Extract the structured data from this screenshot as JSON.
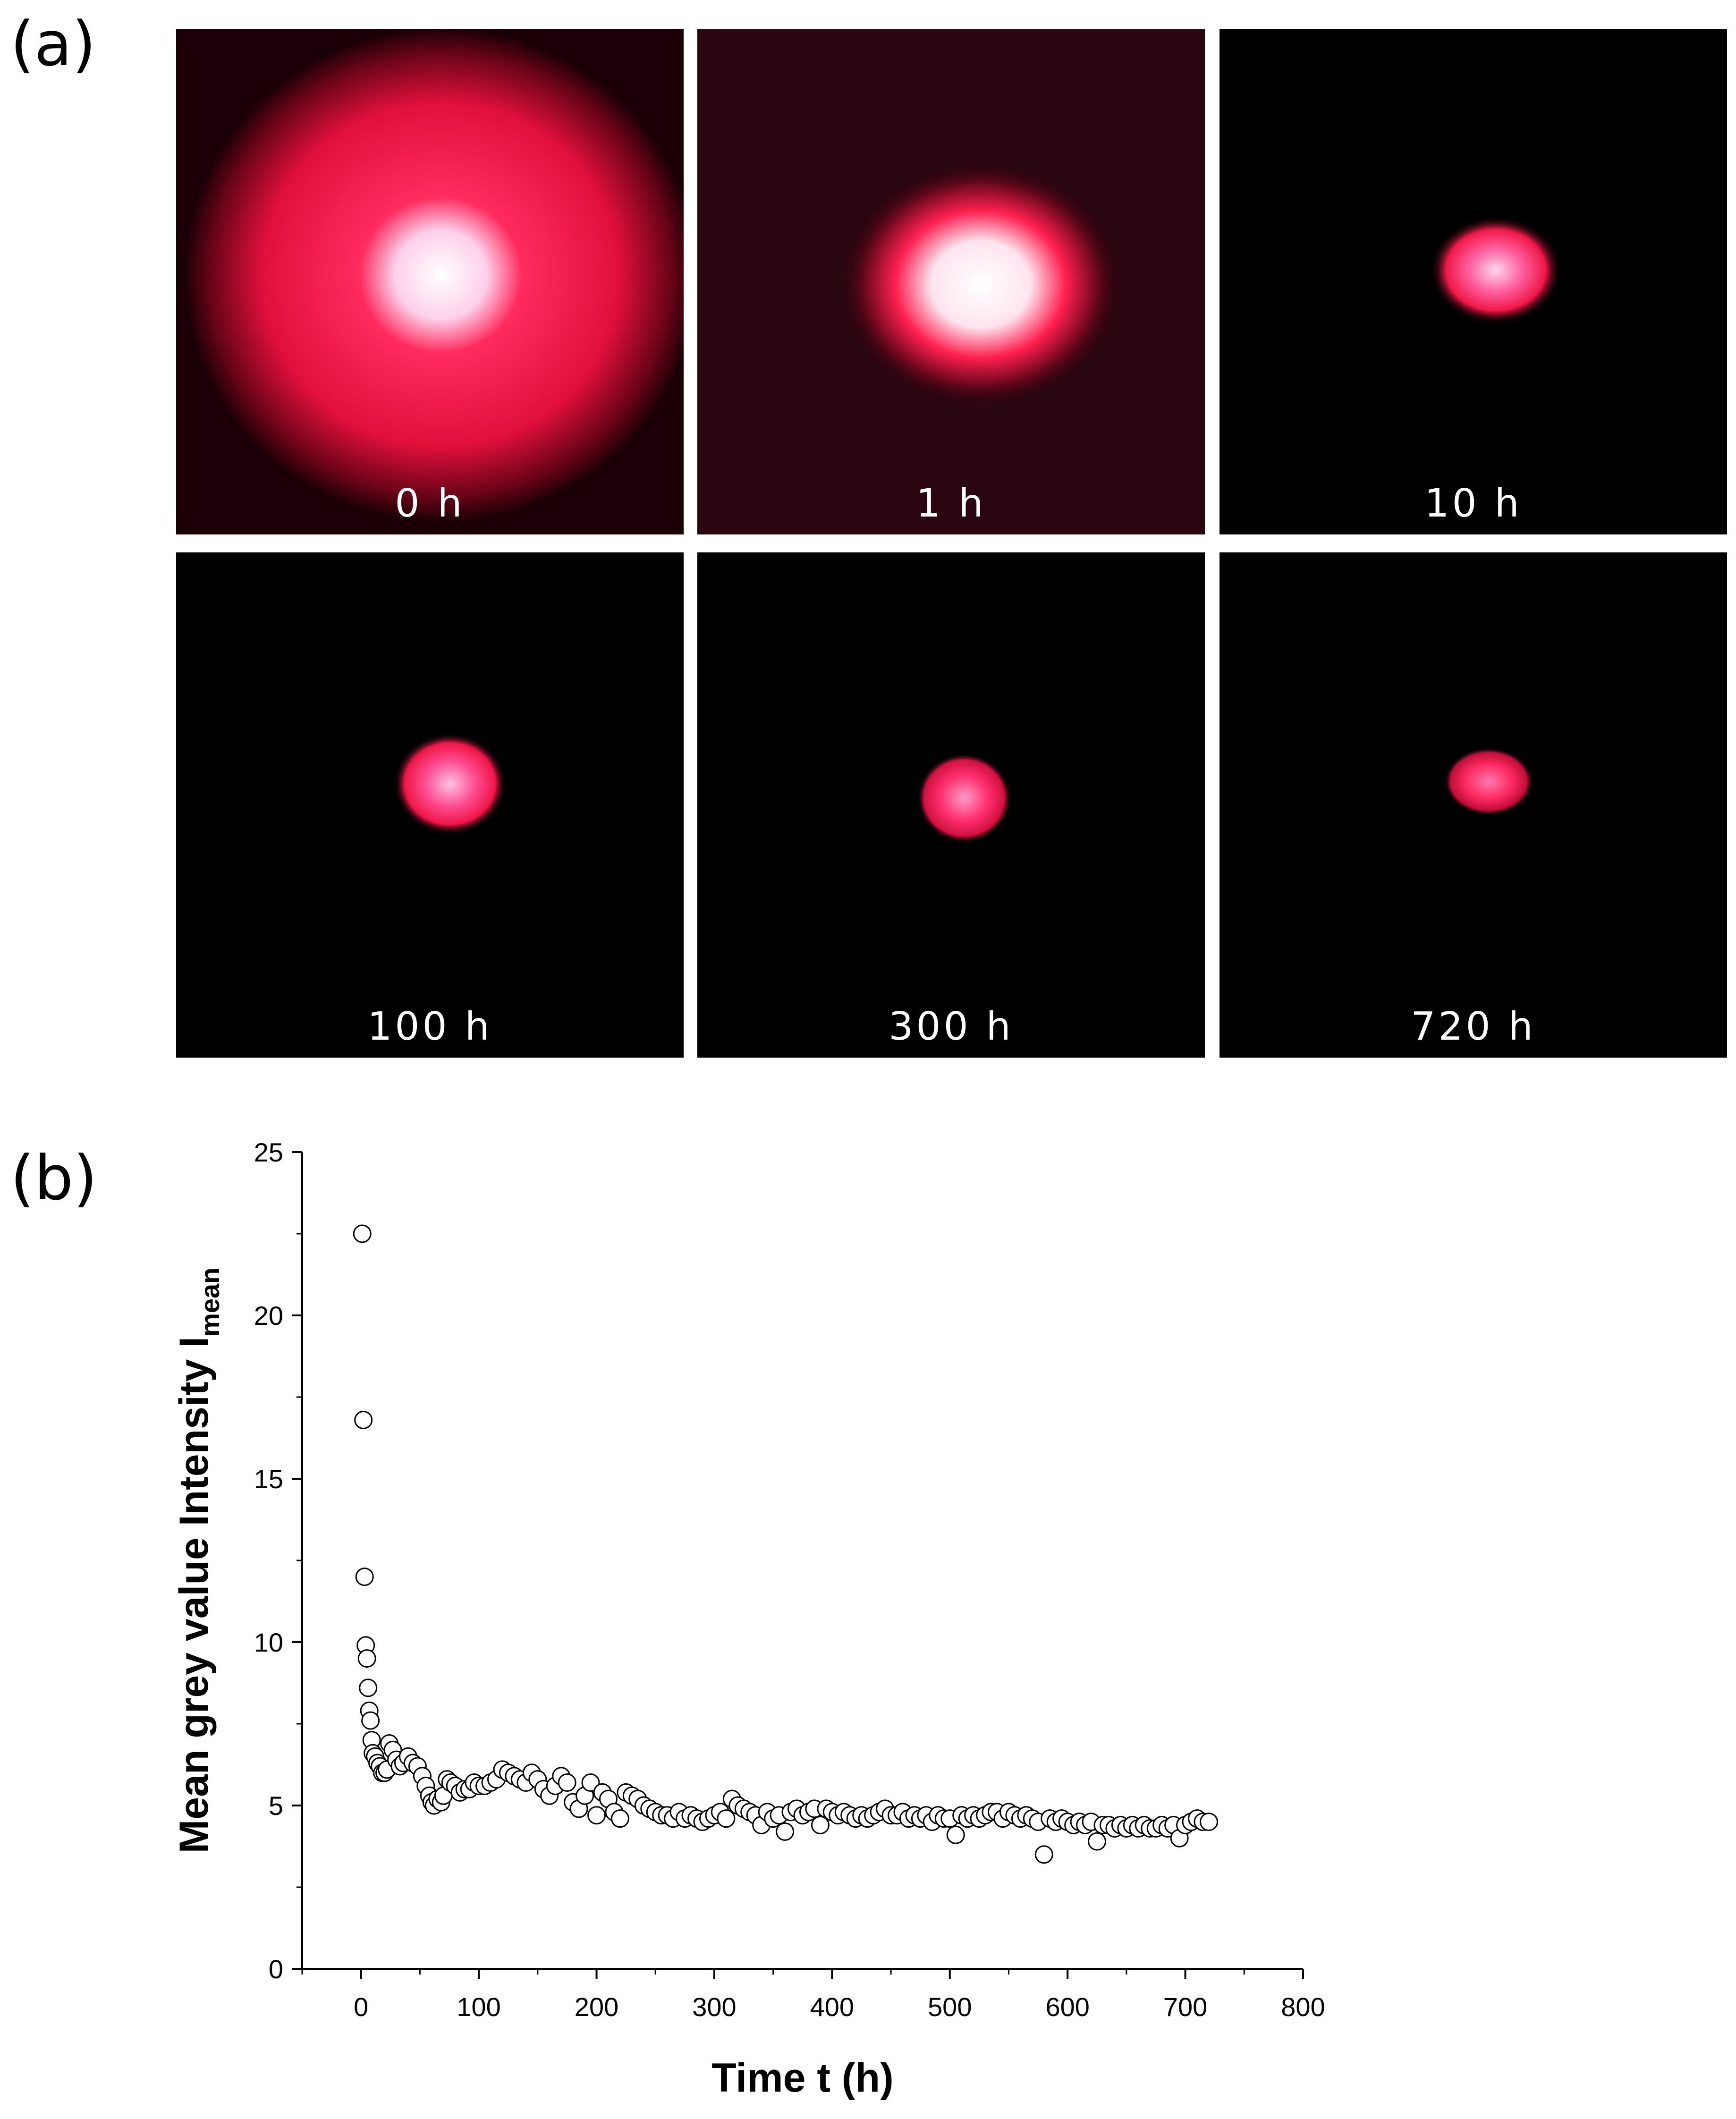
{
  "panel_a": {
    "label": "(a)",
    "images": [
      {
        "caption": "0 h"
      },
      {
        "caption": "1 h"
      },
      {
        "caption": "10 h"
      },
      {
        "caption": "100 h"
      },
      {
        "caption": "300 h"
      },
      {
        "caption": "720 h"
      }
    ]
  },
  "panel_b": {
    "label": "(b)"
  },
  "chart_data": {
    "type": "scatter",
    "xlabel": "Time t (h)",
    "ylabel": "Mean grey value Intensity I",
    "ylabel_subscript": "mean",
    "xlim": [
      -50,
      800
    ],
    "ylim": [
      0,
      25
    ],
    "xticks": [
      0,
      100,
      200,
      300,
      400,
      500,
      600,
      700,
      800
    ],
    "yticks": [
      0,
      5,
      10,
      15,
      20,
      25
    ],
    "grid": false,
    "marker": "open-circle",
    "colors": {
      "marker_stroke": "#000000",
      "marker_fill": "#ffffff"
    },
    "series": [
      {
        "x": [
          1,
          2,
          3,
          4,
          5,
          6,
          7,
          8,
          9,
          10,
          12,
          14,
          16,
          18,
          20,
          22,
          24,
          27,
          30,
          33,
          36,
          40,
          44,
          48,
          52,
          55,
          58,
          60,
          62,
          65,
          68,
          70,
          73,
          76,
          80,
          84,
          88,
          92,
          96,
          100,
          105,
          110,
          115,
          120,
          125,
          130,
          135,
          140,
          145,
          150,
          155,
          160,
          165,
          170,
          175,
          180,
          185,
          190,
          195,
          200,
          205,
          210,
          215,
          220,
          225,
          230,
          235,
          240,
          245,
          250,
          255,
          260,
          265,
          270,
          275,
          280,
          285,
          290,
          295,
          300,
          305,
          310,
          315,
          320,
          325,
          330,
          335,
          340,
          345,
          350,
          355,
          360,
          365,
          370,
          375,
          380,
          385,
          390,
          395,
          400,
          405,
          410,
          415,
          420,
          425,
          430,
          435,
          440,
          445,
          450,
          455,
          460,
          465,
          470,
          475,
          480,
          485,
          490,
          495,
          500,
          505,
          510,
          515,
          520,
          525,
          530,
          535,
          540,
          545,
          550,
          555,
          560,
          565,
          570,
          575,
          580,
          585,
          590,
          595,
          600,
          605,
          610,
          615,
          620,
          625,
          630,
          635,
          640,
          645,
          650,
          655,
          660,
          665,
          670,
          675,
          680,
          685,
          690,
          695,
          700,
          705,
          710,
          715,
          720
        ],
        "y": [
          22.5,
          16.8,
          12.0,
          9.9,
          9.5,
          8.6,
          7.9,
          7.6,
          7.0,
          6.6,
          6.5,
          6.3,
          6.2,
          6.0,
          6.0,
          6.1,
          6.9,
          6.7,
          6.4,
          6.2,
          6.3,
          6.5,
          6.3,
          6.2,
          5.9,
          5.6,
          5.3,
          5.1,
          5.0,
          5.2,
          5.1,
          5.3,
          5.8,
          5.7,
          5.6,
          5.4,
          5.5,
          5.5,
          5.7,
          5.6,
          5.6,
          5.7,
          5.8,
          6.1,
          6.0,
          5.9,
          5.8,
          5.7,
          6.0,
          5.8,
          5.5,
          5.3,
          5.6,
          5.9,
          5.7,
          5.1,
          4.9,
          5.3,
          5.7,
          4.7,
          5.4,
          5.2,
          4.8,
          4.6,
          5.4,
          5.3,
          5.2,
          5.0,
          4.9,
          4.8,
          4.7,
          4.7,
          4.6,
          4.8,
          4.6,
          4.7,
          4.6,
          4.5,
          4.6,
          4.7,
          4.8,
          4.6,
          5.2,
          5.0,
          4.9,
          4.8,
          4.7,
          4.4,
          4.8,
          4.6,
          4.7,
          4.2,
          4.8,
          4.9,
          4.7,
          4.8,
          4.9,
          4.4,
          4.9,
          4.8,
          4.7,
          4.8,
          4.7,
          4.6,
          4.7,
          4.6,
          4.7,
          4.8,
          4.9,
          4.7,
          4.7,
          4.8,
          4.6,
          4.7,
          4.6,
          4.7,
          4.5,
          4.7,
          4.6,
          4.6,
          4.1,
          4.7,
          4.6,
          4.7,
          4.6,
          4.7,
          4.8,
          4.8,
          4.6,
          4.8,
          4.7,
          4.6,
          4.7,
          4.6,
          4.5,
          3.5,
          4.6,
          4.5,
          4.6,
          4.5,
          4.4,
          4.5,
          4.4,
          4.5,
          3.9,
          4.4,
          4.4,
          4.3,
          4.4,
          4.3,
          4.4,
          4.3,
          4.4,
          4.3,
          4.3,
          4.4,
          4.3,
          4.4,
          4.0,
          4.4,
          4.5,
          4.6,
          4.5,
          4.5
        ]
      }
    ]
  }
}
